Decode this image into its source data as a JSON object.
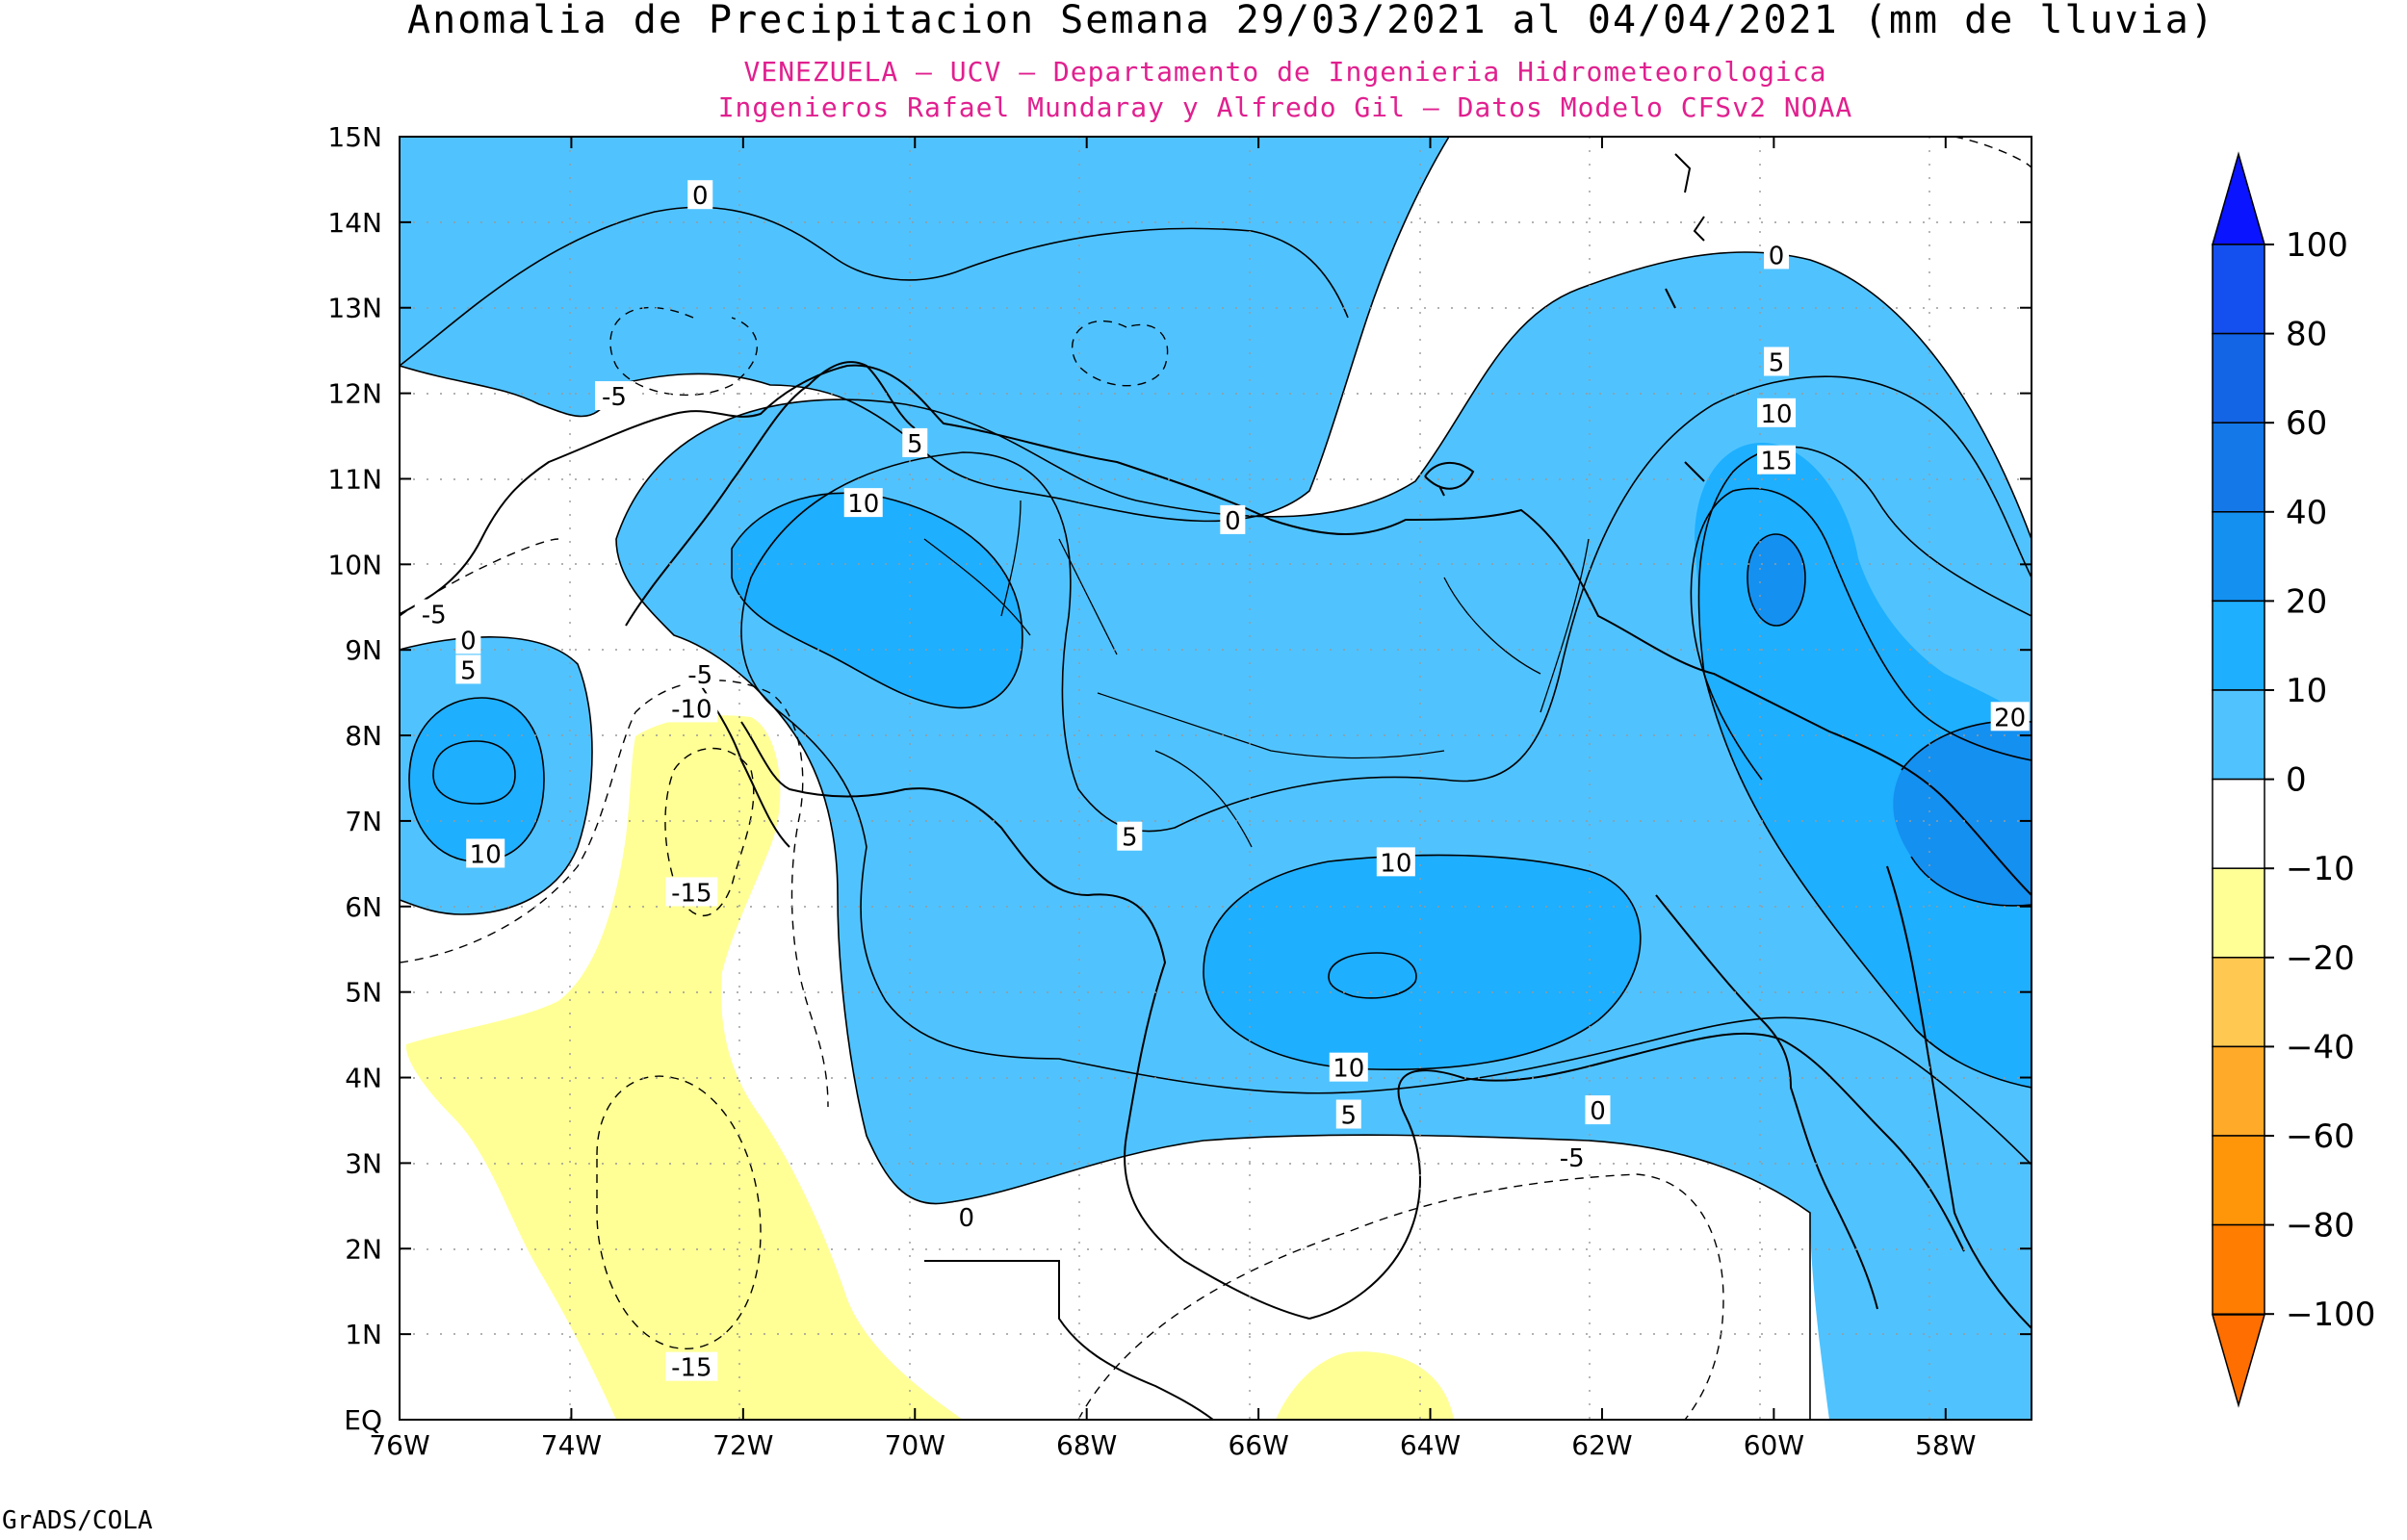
{
  "title": "Anomalia de Precipitacion Semana 29/03/2021 al 04/04/2021 (mm de lluvia)",
  "subtitle_lines": [
    "VENEZUELA – UCV – Departamento de Ingenieria Hidrometeorologica",
    "Ingenieros Rafael Mundaray y Alfredo Gil – Datos Modelo CFSv2 NOAA"
  ],
  "footer": "GrADS/COLA",
  "map": {
    "lon_ticks": [
      "76W",
      "74W",
      "72W",
      "70W",
      "68W",
      "66W",
      "64W",
      "62W",
      "60W",
      "58W"
    ],
    "lat_ticks": [
      "EQ",
      "1N",
      "2N",
      "3N",
      "4N",
      "5N",
      "6N",
      "7N",
      "8N",
      "9N",
      "10N",
      "11N",
      "12N",
      "13N",
      "14N",
      "15N"
    ],
    "contour_labels": [
      {
        "text": "0",
        "lon": -72.5,
        "lat": 14.3
      },
      {
        "text": "-5",
        "lon": -73.5,
        "lat": 11.95
      },
      {
        "text": "-5",
        "lon": -75.6,
        "lat": 9.4
      },
      {
        "text": "0",
        "lon": -75.2,
        "lat": 9.1
      },
      {
        "text": "5",
        "lon": -75.2,
        "lat": 8.75
      },
      {
        "text": "10",
        "lon": -75.0,
        "lat": 6.6
      },
      {
        "text": "-5",
        "lon": -72.5,
        "lat": 8.7
      },
      {
        "text": "-10",
        "lon": -72.6,
        "lat": 8.3
      },
      {
        "text": "-15",
        "lon": -72.6,
        "lat": 6.15
      },
      {
        "text": "-15",
        "lon": -72.6,
        "lat": 0.6
      },
      {
        "text": "5",
        "lon": -70,
        "lat": 11.4
      },
      {
        "text": "10",
        "lon": -70.6,
        "lat": 10.7
      },
      {
        "text": "0",
        "lon": -66.3,
        "lat": 10.5
      },
      {
        "text": "0",
        "lon": -59.97,
        "lat": 13.6
      },
      {
        "text": "5",
        "lon": -59.97,
        "lat": 12.35
      },
      {
        "text": "10",
        "lon": -59.97,
        "lat": 11.75
      },
      {
        "text": "15",
        "lon": -59.97,
        "lat": 11.2
      },
      {
        "text": "20",
        "lon": -57.25,
        "lat": 8.2
      },
      {
        "text": "5",
        "lon": -67.5,
        "lat": 6.8
      },
      {
        "text": "10",
        "lon": -64.4,
        "lat": 6.5
      },
      {
        "text": "10",
        "lon": -64.95,
        "lat": 4.1
      },
      {
        "text": "5",
        "lon": -64.95,
        "lat": 3.55
      },
      {
        "text": "0",
        "lon": -62.05,
        "lat": 3.6
      },
      {
        "text": "-5",
        "lon": -62.35,
        "lat": 3.05
      },
      {
        "text": "0",
        "lon": -69.4,
        "lat": 2.35
      }
    ]
  },
  "legend": {
    "labels": [
      "100",
      "80",
      "60",
      "40",
      "20",
      "10",
      "0",
      "−10",
      "−20",
      "−40",
      "−60",
      "−80",
      "−100"
    ],
    "colors": {
      "bin_80_100": "#1450f0",
      "bin_60_80": "#1464e6",
      "bin_40_60": "#1478e8",
      "bin_20_40": "#1490f0",
      "bin_10_20": "#1eafff",
      "bin_0_10": "#50c3ff",
      "bin_m10_0": "#ffffff",
      "bin_m20_m10": "#ffff96",
      "bin_m40_m20": "#ffc850",
      "bin_m60_m40": "#ffaa28",
      "bin_m80_m60": "#ff960a",
      "bin_m100_m80": "#ff7d00",
      "top_arrow": "#0a14ff",
      "bottom_arrow": "#ff6e00"
    }
  }
}
